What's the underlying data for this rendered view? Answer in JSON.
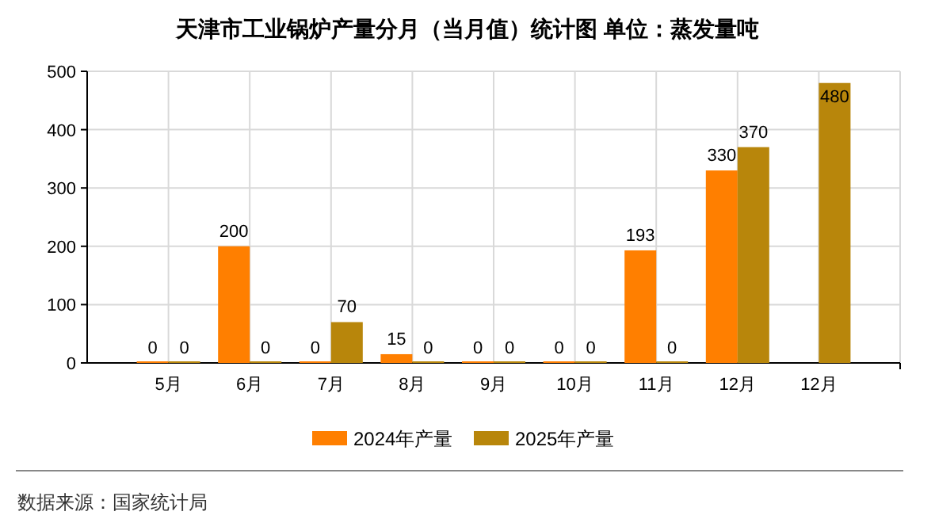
{
  "chart_data": {
    "type": "bar",
    "title": "天津市工业锅炉产量分月（当月值）统计图 单位：蒸发量吨",
    "categories": [
      "5月",
      "6月",
      "7月",
      "8月",
      "9月",
      "10月",
      "11月",
      "12月",
      "12月"
    ],
    "series": [
      {
        "name": "2024年产量",
        "color": "#ff7f00",
        "values": [
          0,
          200,
          0,
          15,
          0,
          0,
          193,
          330,
          null
        ]
      },
      {
        "name": "2025年产量",
        "color": "#b8860b",
        "values": [
          0,
          0,
          70,
          0,
          0,
          0,
          0,
          370,
          480
        ]
      }
    ],
    "ylim": [
      0,
      500
    ],
    "yticks": [
      0,
      100,
      200,
      300,
      400,
      500
    ],
    "grid": true,
    "legend": "bottom",
    "data_labels": true,
    "annotations": [
      "数据来源：国家统计局"
    ]
  }
}
